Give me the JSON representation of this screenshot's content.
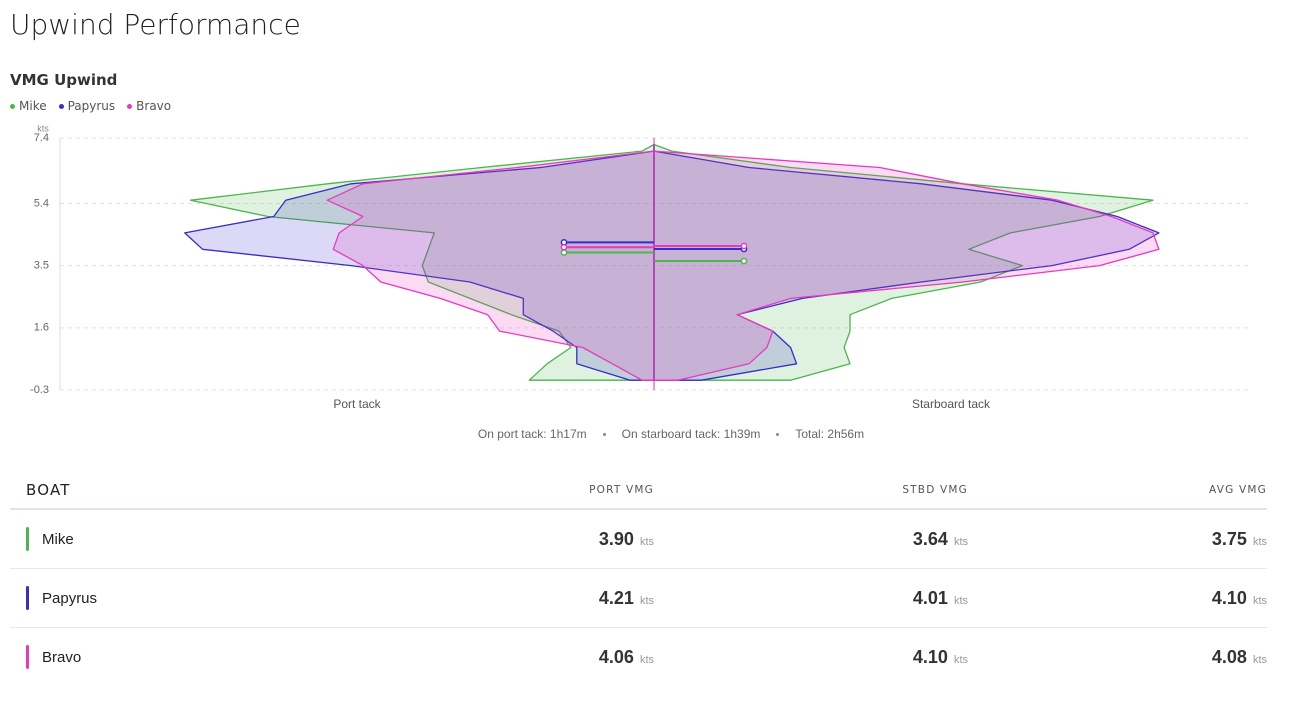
{
  "page": {
    "title": "Upwind Performance"
  },
  "chart_data": {
    "type": "violin",
    "title": "VMG Upwind",
    "ylabel": "kts",
    "ylim": [
      -0.3,
      7.4
    ],
    "yticks": [
      -0.3,
      1.6,
      3.5,
      5.4,
      7.4
    ],
    "grid": true,
    "sides": [
      "Port tack",
      "Starboard tack"
    ],
    "y": [
      0,
      0.5,
      1,
      1.5,
      2,
      2.5,
      3,
      3.5,
      4,
      4.5,
      5,
      5.5,
      6,
      6.5,
      7,
      7.2
    ],
    "series": [
      {
        "name": "Mike",
        "color": "#4cb54c",
        "port_vmg": 3.9,
        "stbd_vmg": 3.64,
        "port": [
          0.21,
          0.18,
          0.14,
          0.16,
          0.24,
          0.31,
          0.38,
          0.39,
          0.38,
          0.37,
          0.65,
          0.78,
          0.55,
          0.29,
          0.02,
          0
        ],
        "starboard": [
          0.23,
          0.33,
          0.32,
          0.33,
          0.33,
          0.4,
          0.55,
          0.62,
          0.53,
          0.6,
          0.75,
          0.84,
          0.52,
          0.23,
          0.03,
          0
        ]
      },
      {
        "name": "Papyrus",
        "color": "#3a2cc8",
        "port_vmg": 4.21,
        "stbd_vmg": 4.01,
        "port": [
          0.04,
          0.13,
          0.13,
          0.17,
          0.22,
          0.22,
          0.31,
          0.51,
          0.76,
          0.79,
          0.64,
          0.62,
          0.51,
          0.19,
          0,
          0
        ],
        "starboard": [
          0.08,
          0.24,
          0.23,
          0.2,
          0.14,
          0.25,
          0.45,
          0.67,
          0.8,
          0.85,
          0.78,
          0.67,
          0.45,
          0.16,
          0,
          0
        ]
      },
      {
        "name": "Bravo",
        "color": "#e83ac0",
        "port_vmg": 4.06,
        "stbd_vmg": 4.1,
        "port": [
          0.02,
          0.07,
          0.12,
          0.26,
          0.28,
          0.36,
          0.46,
          0.49,
          0.54,
          0.53,
          0.49,
          0.55,
          0.49,
          0.23,
          0,
          0
        ],
        "starboard": [
          0.04,
          0.16,
          0.19,
          0.2,
          0.14,
          0.23,
          0.52,
          0.75,
          0.85,
          0.84,
          0.77,
          0.68,
          0.52,
          0.38,
          0,
          0
        ]
      }
    ]
  },
  "summary": [
    "On port tack: 1h17m",
    "On starboard tack: 1h39m",
    "Total: 2h56m"
  ],
  "table": {
    "headers": [
      "BOAT",
      "PORT VMG",
      "STBD VMG",
      "AVG VMG"
    ],
    "unit": "kts",
    "rows": [
      [
        "Mike",
        "3.90",
        "3.64",
        "3.75"
      ],
      [
        "Papyrus",
        "4.21",
        "4.01",
        "4.10"
      ],
      [
        "Bravo",
        "4.06",
        "4.10",
        "4.08"
      ]
    ]
  }
}
